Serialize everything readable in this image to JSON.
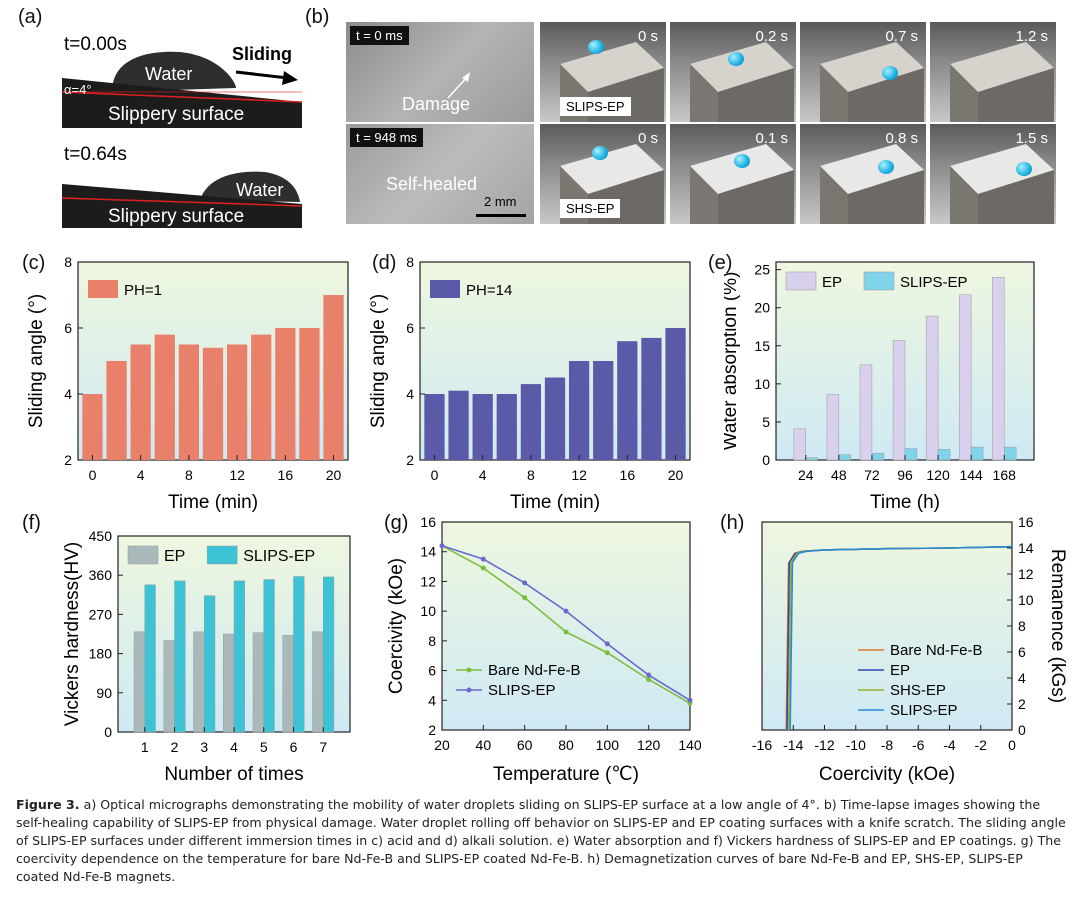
{
  "panel_letters": {
    "a": "(a)",
    "b": "(b)",
    "c": "(c)",
    "d": "(d)",
    "e": "(e)",
    "f": "(f)",
    "g": "(g)",
    "h": "(h)"
  },
  "panel_a": {
    "t1": "t=0.00s",
    "t2": "t=0.64s",
    "sliding": "Sliding",
    "water1": "Water",
    "water2": "Water",
    "angle": "α=4°",
    "surface1": "Slippery surface",
    "surface2": "Slippery surface"
  },
  "panel_b": {
    "micro_t1": "t = 0 ms",
    "micro_t2": "t = 948 ms",
    "damage": "Damage",
    "self_healed": "Self-healed",
    "scale": "2 mm",
    "row1_label": "SLIPS-EP",
    "row2_label": "SHS-EP",
    "row1_times": [
      "0 s",
      "0.2 s",
      "0.7 s",
      "1.2 s"
    ],
    "row2_times": [
      "0 s",
      "0.1 s",
      "0.8 s",
      "1.5 s"
    ]
  },
  "chart_data": [
    {
      "id": "c",
      "type": "bar",
      "categories": [
        0,
        2,
        4,
        6,
        8,
        10,
        12,
        14,
        16,
        18,
        20
      ],
      "values": [
        4.0,
        5.0,
        5.5,
        5.8,
        5.5,
        5.4,
        5.5,
        5.8,
        6.0,
        6.0,
        7.0
      ],
      "legend": "PH=1",
      "xlabel": "Time (min)",
      "ylabel": "Sliding angle (°)",
      "ylim": [
        2,
        8
      ],
      "yticks": [
        2,
        4,
        6,
        8
      ],
      "xticks": [
        0,
        4,
        8,
        12,
        16,
        20
      ],
      "color": "#e8806a"
    },
    {
      "id": "d",
      "type": "bar",
      "categories": [
        0,
        2,
        4,
        6,
        8,
        10,
        12,
        14,
        16,
        18,
        20
      ],
      "values": [
        4.0,
        4.1,
        4.0,
        4.0,
        4.3,
        4.5,
        5.0,
        5.0,
        5.6,
        5.7,
        6.0
      ],
      "legend": "PH=14",
      "xlabel": "Time (min)",
      "ylabel": "Sliding angle (°)",
      "ylim": [
        2,
        8
      ],
      "yticks": [
        2,
        4,
        6,
        8
      ],
      "xticks": [
        0,
        4,
        8,
        12,
        16,
        20
      ],
      "color": "#5a5aa8"
    },
    {
      "id": "e",
      "type": "bar",
      "categories": [
        "24",
        "48",
        "72",
        "96",
        "120",
        "144",
        "168"
      ],
      "series": [
        {
          "name": "EP",
          "values": [
            4.1,
            8.6,
            12.5,
            15.7,
            18.9,
            21.7,
            24.0
          ],
          "color": "#d8d0ec"
        },
        {
          "name": "SLIPS-EP",
          "values": [
            0.3,
            0.7,
            0.9,
            1.5,
            1.4,
            1.7,
            1.7
          ],
          "color": "#7fd4ea"
        }
      ],
      "xlabel": "Time (h)",
      "ylabel": "Water absorption (%)",
      "ylim": [
        0,
        26
      ],
      "yticks": [
        0,
        5,
        10,
        15,
        20,
        25
      ]
    },
    {
      "id": "f",
      "type": "bar",
      "categories": [
        "1",
        "2",
        "3",
        "4",
        "5",
        "6",
        "7"
      ],
      "series": [
        {
          "name": "EP",
          "values": [
            230,
            210,
            230,
            225,
            228,
            222,
            230
          ],
          "color": "#a9b8b8"
        },
        {
          "name": "SLIPS-EP",
          "values": [
            338,
            347,
            313,
            347,
            350,
            357,
            356
          ],
          "color": "#3cc4d6"
        }
      ],
      "xlabel": "Number of times",
      "ylabel": "Vickers hardness(HV)",
      "ylim": [
        0,
        450
      ],
      "yticks": [
        0,
        90,
        180,
        270,
        360,
        450
      ]
    },
    {
      "id": "g",
      "type": "line",
      "x": [
        20,
        40,
        60,
        80,
        100,
        120,
        140
      ],
      "series": [
        {
          "name": "Bare Nd-Fe-B",
          "values": [
            14.4,
            12.9,
            10.9,
            8.6,
            7.2,
            5.4,
            3.8
          ],
          "color": "#7bbf3e"
        },
        {
          "name": "SLIPS-EP",
          "values": [
            14.4,
            13.5,
            11.9,
            10.0,
            7.8,
            5.7,
            4.0
          ],
          "color": "#6a6ad0"
        }
      ],
      "xlabel": "Temperature (℃)",
      "ylabel": "Coercivity (kOe)",
      "xlim": [
        20,
        140
      ],
      "ylim": [
        2,
        16
      ],
      "xticks": [
        20,
        40,
        60,
        80,
        100,
        120,
        140
      ],
      "yticks": [
        2,
        4,
        6,
        8,
        10,
        12,
        14,
        16
      ]
    },
    {
      "id": "h",
      "type": "line",
      "series": [
        {
          "name": "Bare Nd-Fe-B",
          "color": "#e0782a",
          "x": [
            -14.45,
            -14.3,
            -13.9,
            -13.4,
            -12,
            -8,
            -4,
            0
          ],
          "values": [
            0,
            12.8,
            13.6,
            13.75,
            13.85,
            13.95,
            14.0,
            14.1
          ]
        },
        {
          "name": "EP",
          "color": "#2a4ab8",
          "x": [
            -14.4,
            -14.25,
            -13.85,
            -13.3,
            -12,
            -8,
            -4,
            0
          ],
          "values": [
            0,
            12.9,
            13.6,
            13.75,
            13.85,
            13.95,
            14.0,
            14.1
          ]
        },
        {
          "name": "SHS-EP",
          "color": "#9ab02a",
          "x": [
            -14.3,
            -14.15,
            -13.75,
            -13.2,
            -12,
            -8,
            -4,
            0
          ],
          "values": [
            0,
            12.9,
            13.6,
            13.75,
            13.85,
            13.95,
            14.0,
            14.1
          ]
        },
        {
          "name": "SLIPS-EP",
          "color": "#2a8ad8",
          "x": [
            -14.2,
            -14.05,
            -13.65,
            -13.1,
            -12,
            -8,
            -4,
            0
          ],
          "values": [
            0,
            12.9,
            13.6,
            13.75,
            13.85,
            13.95,
            14.0,
            14.1
          ]
        }
      ],
      "xlabel": "Coercivity (kOe)",
      "ylabel": "Remanence (kGs)",
      "xlim": [
        -16,
        0
      ],
      "ylim": [
        0,
        16
      ],
      "xticks": [
        -16,
        -14,
        -12,
        -10,
        -8,
        -6,
        -4,
        -2,
        0
      ],
      "yticks": [
        0,
        2,
        4,
        6,
        8,
        10,
        12,
        14,
        16
      ]
    }
  ],
  "caption": {
    "label": "Figure 3.",
    "text": " a) Optical micrographs demonstrating the mobility of water droplets sliding on SLIPS-EP surface at a low angle of 4°. b) Time-lapse images showing the self-healing capability of SLIPS-EP from physical damage. Water droplet rolling off behavior on SLIPS-EP and EP coating surfaces with a knife scratch. The sliding angle of SLIPS-EP surfaces under different immersion times in c) acid and d) alkali solution. e) Water absorption and f) Vickers hardness of SLIPS-EP and EP coatings. g) The coercivity dependence on the temperature for bare Nd-Fe-B and SLIPS-EP coated Nd-Fe-B. h) Demagnetization curves of bare Nd-Fe-B and EP, SHS-EP, SLIPS-EP coated Nd-Fe-B magnets."
  }
}
